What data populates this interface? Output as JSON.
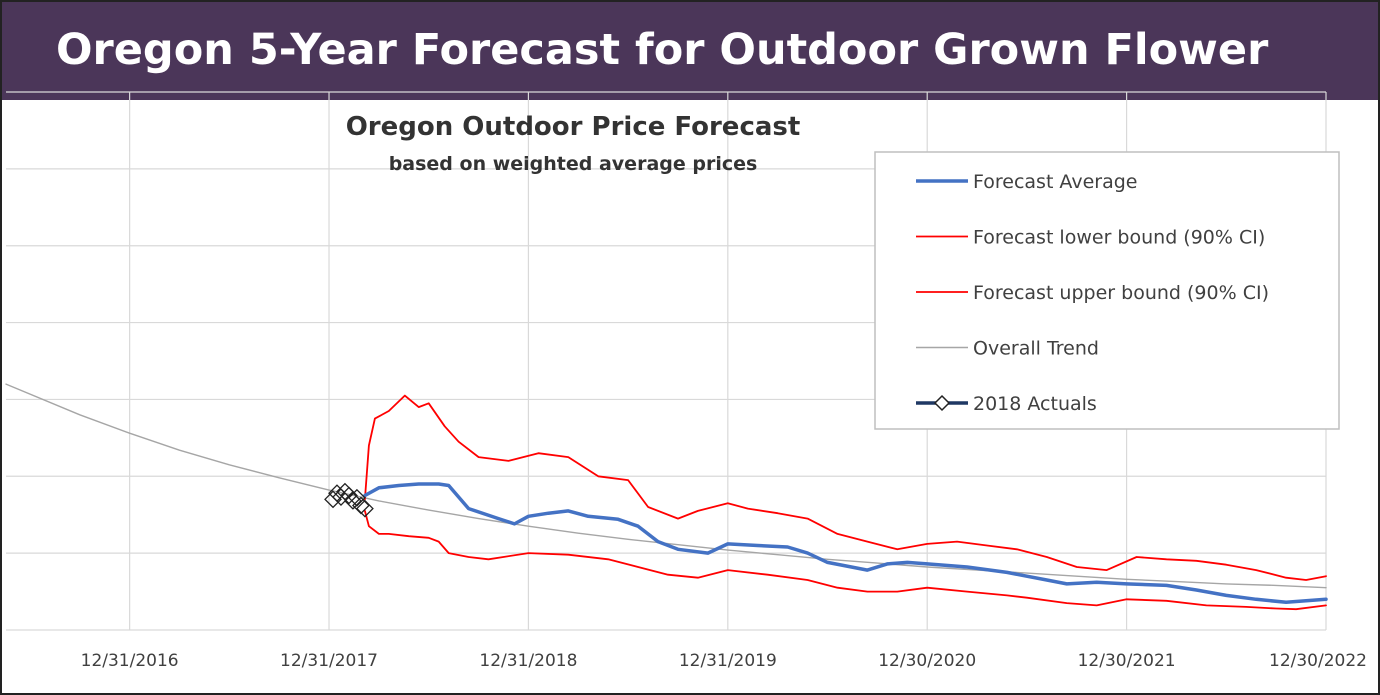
{
  "banner": {
    "title": "Oregon 5-Year Forecast for Outdoor Grown Flower"
  },
  "colors": {
    "banner_bg": "#4b3659",
    "forecast_average": "#4472c4",
    "bounds": "#ff0000",
    "trend": "#a6a6a6",
    "actuals": "#1f3864",
    "grid": "#d9d9d9"
  },
  "chart_data": {
    "type": "line",
    "title": "Oregon Outdoor Price Forecast",
    "subtitle": "based on weighted average prices",
    "xlabel": "",
    "ylabel": "",
    "y_tick_labels_shown": false,
    "grid": true,
    "legend_position": "top-right",
    "x_ticks": [
      "12/31/2016",
      "12/31/2017",
      "12/31/2018",
      "12/31/2019",
      "12/30/2020",
      "12/30/2021",
      "12/30/2022"
    ],
    "xlim": [
      2016.38,
      2023.0
    ],
    "ylim": [
      0,
      7
    ],
    "series": [
      {
        "name": "Forecast Average",
        "kind": "line",
        "x": [
          2018.18,
          2018.25,
          2018.35,
          2018.45,
          2018.55,
          2018.6,
          2018.7,
          2018.85,
          2018.93,
          2019.0,
          2019.1,
          2019.2,
          2019.3,
          2019.45,
          2019.55,
          2019.65,
          2019.75,
          2019.9,
          2020.0,
          2020.15,
          2020.3,
          2020.4,
          2020.5,
          2020.62,
          2020.7,
          2020.8,
          2020.9,
          2021.0,
          2021.2,
          2021.4,
          2021.6,
          2021.7,
          2021.85,
          2022.0,
          2022.2,
          2022.35,
          2022.5,
          2022.65,
          2022.8,
          2022.9,
          2023.0
        ],
        "y": [
          1.75,
          1.85,
          1.88,
          1.9,
          1.9,
          1.88,
          1.58,
          1.45,
          1.38,
          1.48,
          1.52,
          1.55,
          1.48,
          1.44,
          1.35,
          1.15,
          1.05,
          1.0,
          1.12,
          1.1,
          1.08,
          1.0,
          0.88,
          0.82,
          0.78,
          0.86,
          0.88,
          0.86,
          0.82,
          0.75,
          0.65,
          0.6,
          0.62,
          0.6,
          0.58,
          0.52,
          0.45,
          0.4,
          0.36,
          0.38,
          0.4
        ]
      },
      {
        "name": "Forecast lower bound (90% CI)",
        "kind": "line",
        "x": [
          2018.18,
          2018.2,
          2018.25,
          2018.3,
          2018.4,
          2018.5,
          2018.55,
          2018.6,
          2018.7,
          2018.8,
          2019.0,
          2019.2,
          2019.4,
          2019.55,
          2019.7,
          2019.85,
          2020.0,
          2020.2,
          2020.4,
          2020.55,
          2020.7,
          2020.85,
          2021.0,
          2021.2,
          2021.4,
          2021.5,
          2021.7,
          2021.85,
          2022.0,
          2022.2,
          2022.4,
          2022.6,
          2022.75,
          2022.85,
          2023.0
        ],
        "y": [
          1.55,
          1.35,
          1.25,
          1.25,
          1.22,
          1.2,
          1.15,
          1.0,
          0.95,
          0.92,
          1.0,
          0.98,
          0.92,
          0.82,
          0.72,
          0.68,
          0.78,
          0.72,
          0.65,
          0.55,
          0.5,
          0.5,
          0.55,
          0.5,
          0.45,
          0.42,
          0.35,
          0.32,
          0.4,
          0.38,
          0.32,
          0.3,
          0.28,
          0.27,
          0.32
        ]
      },
      {
        "name": "Forecast upper bound (90% CI)",
        "kind": "line",
        "x": [
          2018.18,
          2018.2,
          2018.23,
          2018.3,
          2018.38,
          2018.45,
          2018.5,
          2018.58,
          2018.65,
          2018.75,
          2018.9,
          2019.05,
          2019.2,
          2019.35,
          2019.5,
          2019.6,
          2019.75,
          2019.85,
          2020.0,
          2020.1,
          2020.25,
          2020.4,
          2020.55,
          2020.7,
          2020.85,
          2021.0,
          2021.15,
          2021.3,
          2021.45,
          2021.6,
          2021.75,
          2021.9,
          2022.05,
          2022.2,
          2022.35,
          2022.5,
          2022.65,
          2022.8,
          2022.9,
          2023.0
        ],
        "y": [
          1.7,
          2.4,
          2.75,
          2.85,
          3.05,
          2.9,
          2.95,
          2.65,
          2.45,
          2.25,
          2.2,
          2.3,
          2.25,
          2.0,
          1.95,
          1.6,
          1.45,
          1.55,
          1.65,
          1.58,
          1.52,
          1.45,
          1.25,
          1.15,
          1.05,
          1.12,
          1.15,
          1.1,
          1.05,
          0.95,
          0.82,
          0.78,
          0.95,
          0.92,
          0.9,
          0.85,
          0.78,
          0.68,
          0.65,
          0.7
        ]
      },
      {
        "name": "Overall Trend",
        "kind": "line",
        "x": [
          2016.38,
          2016.75,
          2017.0,
          2017.25,
          2017.5,
          2017.75,
          2018.0,
          2018.25,
          2018.5,
          2018.75,
          2019.0,
          2019.25,
          2019.5,
          2019.75,
          2020.0,
          2020.25,
          2020.5,
          2020.75,
          2021.0,
          2021.25,
          2021.5,
          2021.75,
          2022.0,
          2022.25,
          2022.5,
          2022.75,
          2023.0
        ],
        "y": [
          3.2,
          2.8,
          2.56,
          2.34,
          2.15,
          1.98,
          1.82,
          1.68,
          1.56,
          1.45,
          1.35,
          1.26,
          1.18,
          1.11,
          1.04,
          0.98,
          0.92,
          0.87,
          0.82,
          0.78,
          0.74,
          0.7,
          0.66,
          0.63,
          0.6,
          0.58,
          0.55
        ]
      },
      {
        "name": "2018 Actuals",
        "kind": "markers",
        "x": [
          2018.02,
          2018.04,
          2018.06,
          2018.08,
          2018.1,
          2018.12,
          2018.14,
          2018.16,
          2018.18
        ],
        "y": [
          1.7,
          1.78,
          1.73,
          1.8,
          1.75,
          1.68,
          1.72,
          1.62,
          1.58
        ]
      }
    ]
  }
}
